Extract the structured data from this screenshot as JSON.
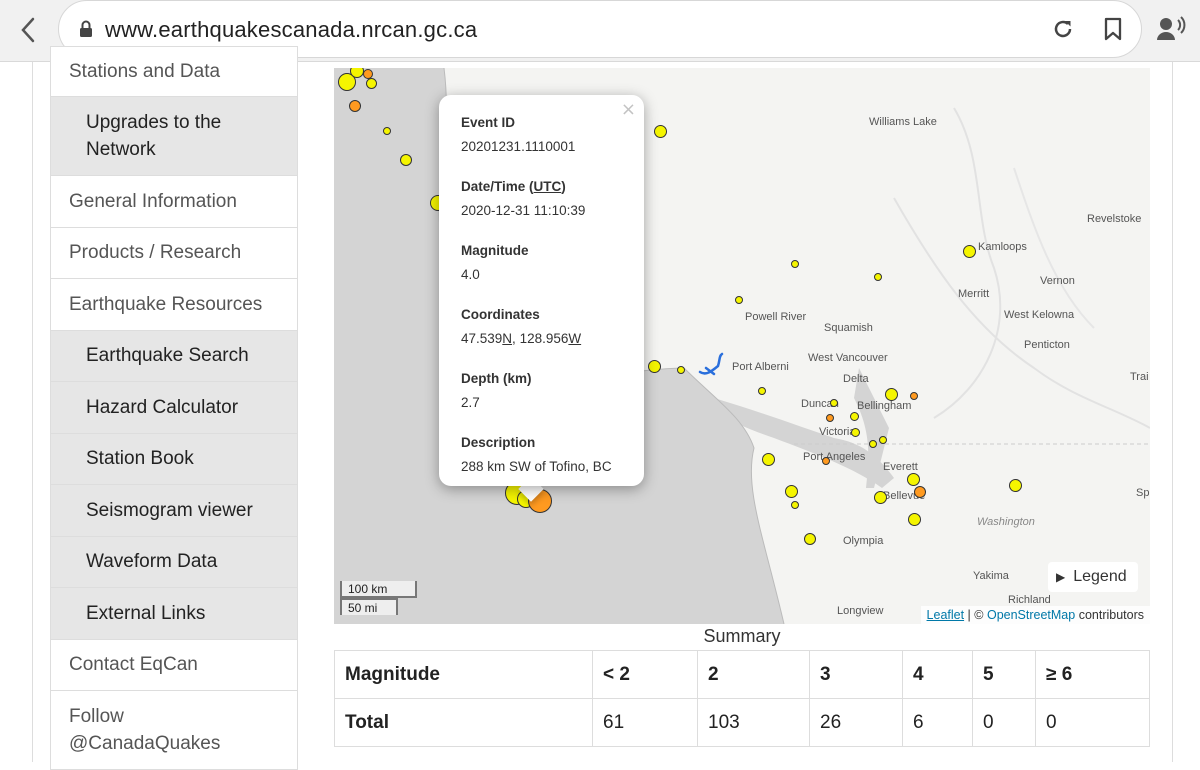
{
  "browser": {
    "url": "www.earthquakescanada.nrcan.gc.ca"
  },
  "sidebar": {
    "items": [
      {
        "label": "Stations and Data",
        "sub": false
      },
      {
        "label": "Upgrades to the Network",
        "sub": true
      },
      {
        "label": "General Information",
        "sub": false
      },
      {
        "label": "Products / Research",
        "sub": false
      },
      {
        "label": "Earthquake Resources",
        "sub": false
      },
      {
        "label": "Earthquake Search",
        "sub": true
      },
      {
        "label": "Hazard Calculator",
        "sub": true
      },
      {
        "label": "Station Book",
        "sub": true
      },
      {
        "label": "Seismogram viewer",
        "sub": true
      },
      {
        "label": "Waveform Data",
        "sub": true
      },
      {
        "label": "External Links",
        "sub": true
      },
      {
        "label": "Contact EqCan",
        "sub": false
      },
      {
        "label": "Follow @CanadaQuakes",
        "sub": false
      }
    ]
  },
  "map": {
    "places": [
      "Williams Lake",
      "Revelstoke",
      "Kamloops",
      "Merritt",
      "Vernon",
      "West Kelowna",
      "Penticton",
      "Powell River",
      "Squamish",
      "West Vancouver",
      "Port Alberni",
      "Delta",
      "Duncan",
      "Bellingham",
      "Victoria",
      "Port Angeles",
      "Everett",
      "Bellevue",
      "Washington",
      "Olympia",
      "Yakima",
      "Richland",
      "Longview",
      "Trai",
      "Spo"
    ],
    "popup": {
      "close": "×",
      "event_id_label": "Event ID",
      "event_id": "20201231.1110001",
      "datetime_label_pre": "Date/Time (",
      "datetime_label_utc": "UTC",
      "datetime_label_post": ")",
      "datetime": "2020-12-31 11:10:39",
      "magnitude_label": "Magnitude",
      "magnitude": "4.0",
      "coordinates_label": "Coordinates",
      "lat_value": "47.539",
      "lat_dir": "N",
      "lon_value": "128.956",
      "lon_dir": "W",
      "depth_label": "Depth (km)",
      "depth": "2.7",
      "description_label": "Description",
      "description": "288 km SW of Tofino, BC"
    },
    "legend_label": "Legend",
    "scale_km": "100 km",
    "scale_mi": "50 mi",
    "attribution_leaflet": "Leaflet",
    "attribution_sep": " | © ",
    "attribution_osm": "OpenStreetMap",
    "attribution_post": " contributors",
    "colors": {
      "small_quake": "#f5f500",
      "large_quake": "#ff9a20"
    }
  },
  "summary": {
    "title": "Summary",
    "headers": [
      "Magnitude",
      "< 2",
      "2",
      "3",
      "4",
      "5",
      "≥ 6"
    ],
    "totals": [
      "Total",
      "61",
      "103",
      "26",
      "6",
      "0",
      "0"
    ]
  }
}
